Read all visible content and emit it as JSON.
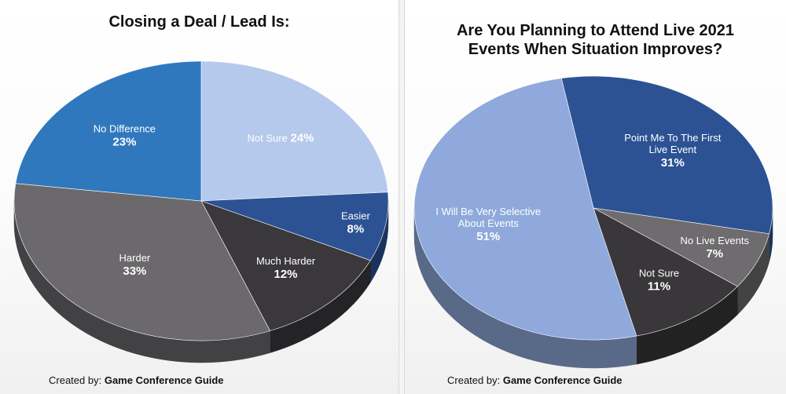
{
  "credit": {
    "prefix": "Created by:",
    "source": "Game Conference Guide"
  },
  "chart_data": [
    {
      "type": "pie",
      "title": "Closing a Deal / Lead Is:",
      "slices": [
        {
          "label": [
            "Not Sure"
          ],
          "value": 24,
          "display": "24%",
          "color": "#b5c9ec",
          "text": "#ffffff"
        },
        {
          "label": [
            "Easier"
          ],
          "value": 8,
          "display": "8%",
          "color": "#2c5294",
          "text": "#ffffff"
        },
        {
          "label": [
            "Much Harder"
          ],
          "value": 12,
          "display": "12%",
          "color": "#3a383b",
          "text": "#ffffff"
        },
        {
          "label": [
            "Harder"
          ],
          "value": 33,
          "display": "33%",
          "color": "#6b696c",
          "text": "#ffffff"
        },
        {
          "label": [
            "No Difference"
          ],
          "value": 23,
          "display": "23%",
          "color": "#3078be",
          "text": "#ffffff"
        }
      ]
    },
    {
      "type": "pie",
      "title": [
        "Are You Planning to Attend Live 2021",
        "Events When Situation Improves?"
      ],
      "slices": [
        {
          "label": [
            "Point Me To The First",
            "Live Event"
          ],
          "value": 31,
          "display": "31%",
          "color": "#2c5294",
          "text": "#ffffff"
        },
        {
          "label": [
            "No Live Events"
          ],
          "value": 7,
          "display": "7%",
          "color": "#6e6c6e",
          "text": "#ffffff"
        },
        {
          "label": [
            "Not Sure"
          ],
          "value": 11,
          "display": "11%",
          "color": "#393739",
          "text": "#ffffff"
        },
        {
          "label": [
            "I Will Be Very Selective",
            "About Events"
          ],
          "value": 51,
          "display": "51%",
          "color": "#8fa9dc",
          "text": "#ffffff"
        }
      ]
    }
  ]
}
